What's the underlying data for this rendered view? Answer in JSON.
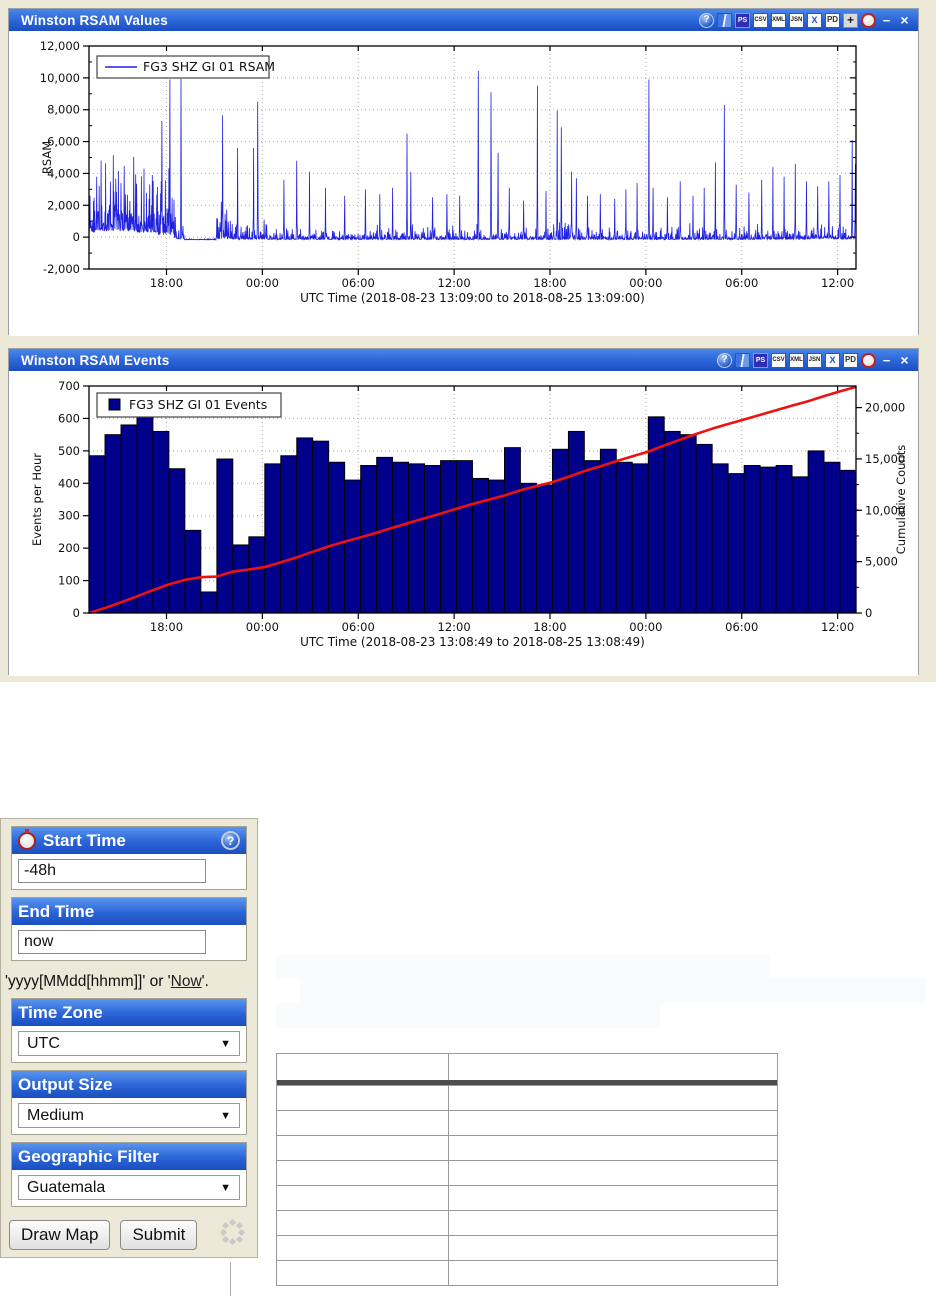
{
  "colors": {
    "titlebar_top": "#4a87ea",
    "titlebar_bottom": "#1b4fc0",
    "cream_bg": "#ece9d8",
    "chart_line_blue": "#2222dd",
    "bar_navy": "#00008b",
    "cumulative_red": "#ee1111"
  },
  "toolbar_icons": {
    "help": {
      "name": "help-icon",
      "glyph": "?",
      "cls": "tb-help"
    },
    "book": {
      "name": "book-icon",
      "glyph": "",
      "cls": "tb-book"
    },
    "ps": {
      "name": "postscript-icon",
      "glyph": "PS",
      "cls": "tb-ps"
    },
    "csv": {
      "name": "csv-icon",
      "glyph": "CSV",
      "cls": "tb-page"
    },
    "xml": {
      "name": "xml-icon",
      "glyph": "XML",
      "cls": "tb-page"
    },
    "json": {
      "name": "json-icon",
      "glyph": "JSN",
      "cls": "tb-page"
    },
    "excel": {
      "name": "excel-icon",
      "glyph": "X",
      "cls": "tb-x"
    },
    "pdf": {
      "name": "pdf-icon",
      "glyph": "PD",
      "cls": "tb-pd"
    },
    "plus": {
      "name": "plus-icon",
      "glyph": "+",
      "cls": "tb-plus"
    },
    "clock": {
      "name": "clock-icon",
      "glyph": "",
      "cls": "tb-clock"
    },
    "minimize": {
      "name": "minimize-icon",
      "glyph": "−",
      "cls": "tb-min"
    },
    "close": {
      "name": "close-icon",
      "glyph": "×",
      "cls": "tb-close"
    }
  },
  "panels": {
    "rsam_values": {
      "title": "Winston RSAM Values",
      "toolbar": [
        "help",
        "book",
        "ps",
        "csv",
        "xml",
        "json",
        "excel",
        "pdf",
        "plus",
        "clock",
        "minimize",
        "close"
      ]
    },
    "rsam_events": {
      "title": "Winston RSAM Events",
      "toolbar": [
        "help",
        "book",
        "ps",
        "csv",
        "xml",
        "json",
        "excel",
        "pdf",
        "clock",
        "minimize",
        "close"
      ]
    }
  },
  "sidebar": {
    "start_time": {
      "label": "Start Time",
      "value": "-48h"
    },
    "end_time": {
      "label": "End Time",
      "value": "now"
    },
    "format_hint_prefix": "'yyyy[MMdd[hhmm]]' or '",
    "format_hint_link": "Now",
    "format_hint_suffix": "'.",
    "time_zone": {
      "label": "Time Zone",
      "value": "UTC"
    },
    "output_size": {
      "label": "Output Size",
      "value": "Medium"
    },
    "geo_filter": {
      "label": "Geographic Filter",
      "value": "Guatemala"
    },
    "buttons": {
      "draw_map": "Draw Map",
      "submit": "Submit"
    }
  },
  "table": {
    "columns": 2,
    "body_rows": 8
  },
  "chart_data": [
    {
      "type": "line",
      "name": "rsam-values",
      "series_label": "FG3 SHZ GI 01 RSAM",
      "xlabel": "UTC Time (2018-08-23 13:09:00 to 2018-08-25 13:09:00)",
      "ylabel": "RSAM",
      "ylim": [
        -2000,
        12000
      ],
      "duration_hours": 48,
      "grid": true,
      "legend_position": "top-left",
      "line_color": "#2222dd",
      "yticks": [
        {
          "v": -2000,
          "label": "-2,000"
        },
        {
          "v": 0,
          "label": "0"
        },
        {
          "v": 2000,
          "label": "2,000"
        },
        {
          "v": 4000,
          "label": "4,000"
        },
        {
          "v": 6000,
          "label": "6,000"
        },
        {
          "v": 8000,
          "label": "8,000"
        },
        {
          "v": 10000,
          "label": "10,000"
        },
        {
          "v": 12000,
          "label": "12,000"
        }
      ],
      "xticks": [
        {
          "f": 0.10104,
          "label": "18:00"
        },
        {
          "f": 0.22604,
          "label": "00:00"
        },
        {
          "f": 0.35104,
          "label": "06:00"
        },
        {
          "f": 0.47604,
          "label": "12:00"
        },
        {
          "f": 0.60104,
          "label": "18:00"
        },
        {
          "f": 0.72604,
          "label": "00:00"
        },
        {
          "f": 0.85104,
          "label": "06:00"
        },
        {
          "f": 0.97604,
          "label": "12:00"
        }
      ],
      "noise_segments": [
        [
          0,
          0.35,
          3800,
          300
        ],
        [
          0.35,
          3.0,
          5900,
          400
        ],
        [
          3.0,
          4.3,
          5200,
          300
        ],
        [
          4.3,
          5.35,
          5600,
          150
        ],
        [
          5.35,
          5.95,
          2600,
          -100
        ],
        [
          5.95,
          7.95,
          70,
          -160
        ],
        [
          7.95,
          8.9,
          2900,
          -100
        ],
        [
          8.9,
          11.1,
          1600,
          -130
        ],
        [
          11.1,
          17.0,
          800,
          -150
        ],
        [
          17.0,
          23.0,
          950,
          -150
        ],
        [
          23.0,
          29.0,
          850,
          -150
        ],
        [
          29.0,
          31.5,
          1500,
          -150
        ],
        [
          31.5,
          34.8,
          950,
          -150
        ],
        [
          34.8,
          41.0,
          900,
          -150
        ],
        [
          41.0,
          45.0,
          1050,
          -140
        ],
        [
          45.0,
          48,
          1150,
          -120
        ]
      ],
      "spikes": [
        [
          4.55,
          7300
        ],
        [
          5.05,
          9900
        ],
        [
          5.75,
          9950
        ],
        [
          8.35,
          7650
        ],
        [
          9.3,
          5600
        ],
        [
          10.3,
          5600
        ],
        [
          10.55,
          8500
        ],
        [
          12.2,
          3600
        ],
        [
          13.0,
          4800
        ],
        [
          13.8,
          4100
        ],
        [
          14.8,
          3100
        ],
        [
          16.0,
          2600
        ],
        [
          17.3,
          3000
        ],
        [
          18.2,
          2700
        ],
        [
          19.0,
          3100
        ],
        [
          19.9,
          6500
        ],
        [
          20.15,
          4100
        ],
        [
          21.5,
          2500
        ],
        [
          22.4,
          2700
        ],
        [
          23.2,
          2600
        ],
        [
          24.35,
          10450
        ],
        [
          25.15,
          9100
        ],
        [
          25.6,
          5300
        ],
        [
          26.3,
          3100
        ],
        [
          27.2,
          2300
        ],
        [
          28.05,
          9500
        ],
        [
          28.6,
          2900
        ],
        [
          29.3,
          7950
        ],
        [
          29.55,
          6900
        ],
        [
          30.2,
          4100
        ],
        [
          30.5,
          3700
        ],
        [
          31.2,
          2600
        ],
        [
          32.0,
          2700
        ],
        [
          32.9,
          2400
        ],
        [
          33.6,
          3000
        ],
        [
          34.3,
          3400
        ],
        [
          35.05,
          9900
        ],
        [
          35.3,
          3100
        ],
        [
          36.2,
          2500
        ],
        [
          37.0,
          3500
        ],
        [
          37.8,
          2600
        ],
        [
          38.5,
          3100
        ],
        [
          39.2,
          4700
        ],
        [
          39.75,
          8300
        ],
        [
          40.5,
          3300
        ],
        [
          41.3,
          2800
        ],
        [
          42.1,
          3600
        ],
        [
          42.8,
          4400
        ],
        [
          43.5,
          3800
        ],
        [
          44.2,
          4600
        ],
        [
          44.9,
          3500
        ],
        [
          45.6,
          3200
        ],
        [
          46.3,
          3500
        ],
        [
          47.0,
          3900
        ],
        [
          47.75,
          6100
        ],
        [
          47.95,
          4600
        ]
      ]
    },
    {
      "type": "bar",
      "name": "rsam-events",
      "series_label": "FG3 SHZ GI 01 Events",
      "xlabel": "UTC Time (2018-08-23 13:08:49 to 2018-08-25 13:08:49)",
      "ylabel_left": "Events per Hour",
      "ylabel_right": "Cumulative Counts",
      "ylim_left": [
        0,
        700
      ],
      "ylim_right": [
        0,
        22100
      ],
      "bins": 48,
      "bin_hours": 1,
      "grid": true,
      "legend_position": "top-left",
      "bar_color": "#00008b",
      "cumulative_line_color": "#ee1111",
      "yticks_left": [
        0,
        100,
        200,
        300,
        400,
        500,
        600,
        700
      ],
      "yticks_right": [
        {
          "v": 0,
          "label": "0"
        },
        {
          "v": 5000,
          "label": "5,000"
        },
        {
          "v": 10000,
          "label": "10,000"
        },
        {
          "v": 15000,
          "label": "15,000"
        },
        {
          "v": 20000,
          "label": "20,000"
        }
      ],
      "xticks": [
        {
          "f": 0.10104,
          "label": "18:00"
        },
        {
          "f": 0.22604,
          "label": "00:00"
        },
        {
          "f": 0.35104,
          "label": "06:00"
        },
        {
          "f": 0.47604,
          "label": "12:00"
        },
        {
          "f": 0.60104,
          "label": "18:00"
        },
        {
          "f": 0.72604,
          "label": "00:00"
        },
        {
          "f": 0.85104,
          "label": "06:00"
        },
        {
          "f": 0.97604,
          "label": "12:00"
        }
      ],
      "values": [
        485,
        550,
        580,
        610,
        560,
        445,
        255,
        65,
        475,
        210,
        235,
        460,
        485,
        540,
        530,
        465,
        410,
        455,
        480,
        465,
        460,
        455,
        470,
        470,
        415,
        410,
        510,
        400,
        395,
        505,
        560,
        470,
        505,
        465,
        460,
        605,
        560,
        550,
        520,
        460,
        430,
        455,
        450,
        455,
        420,
        500,
        465,
        440
      ]
    }
  ]
}
